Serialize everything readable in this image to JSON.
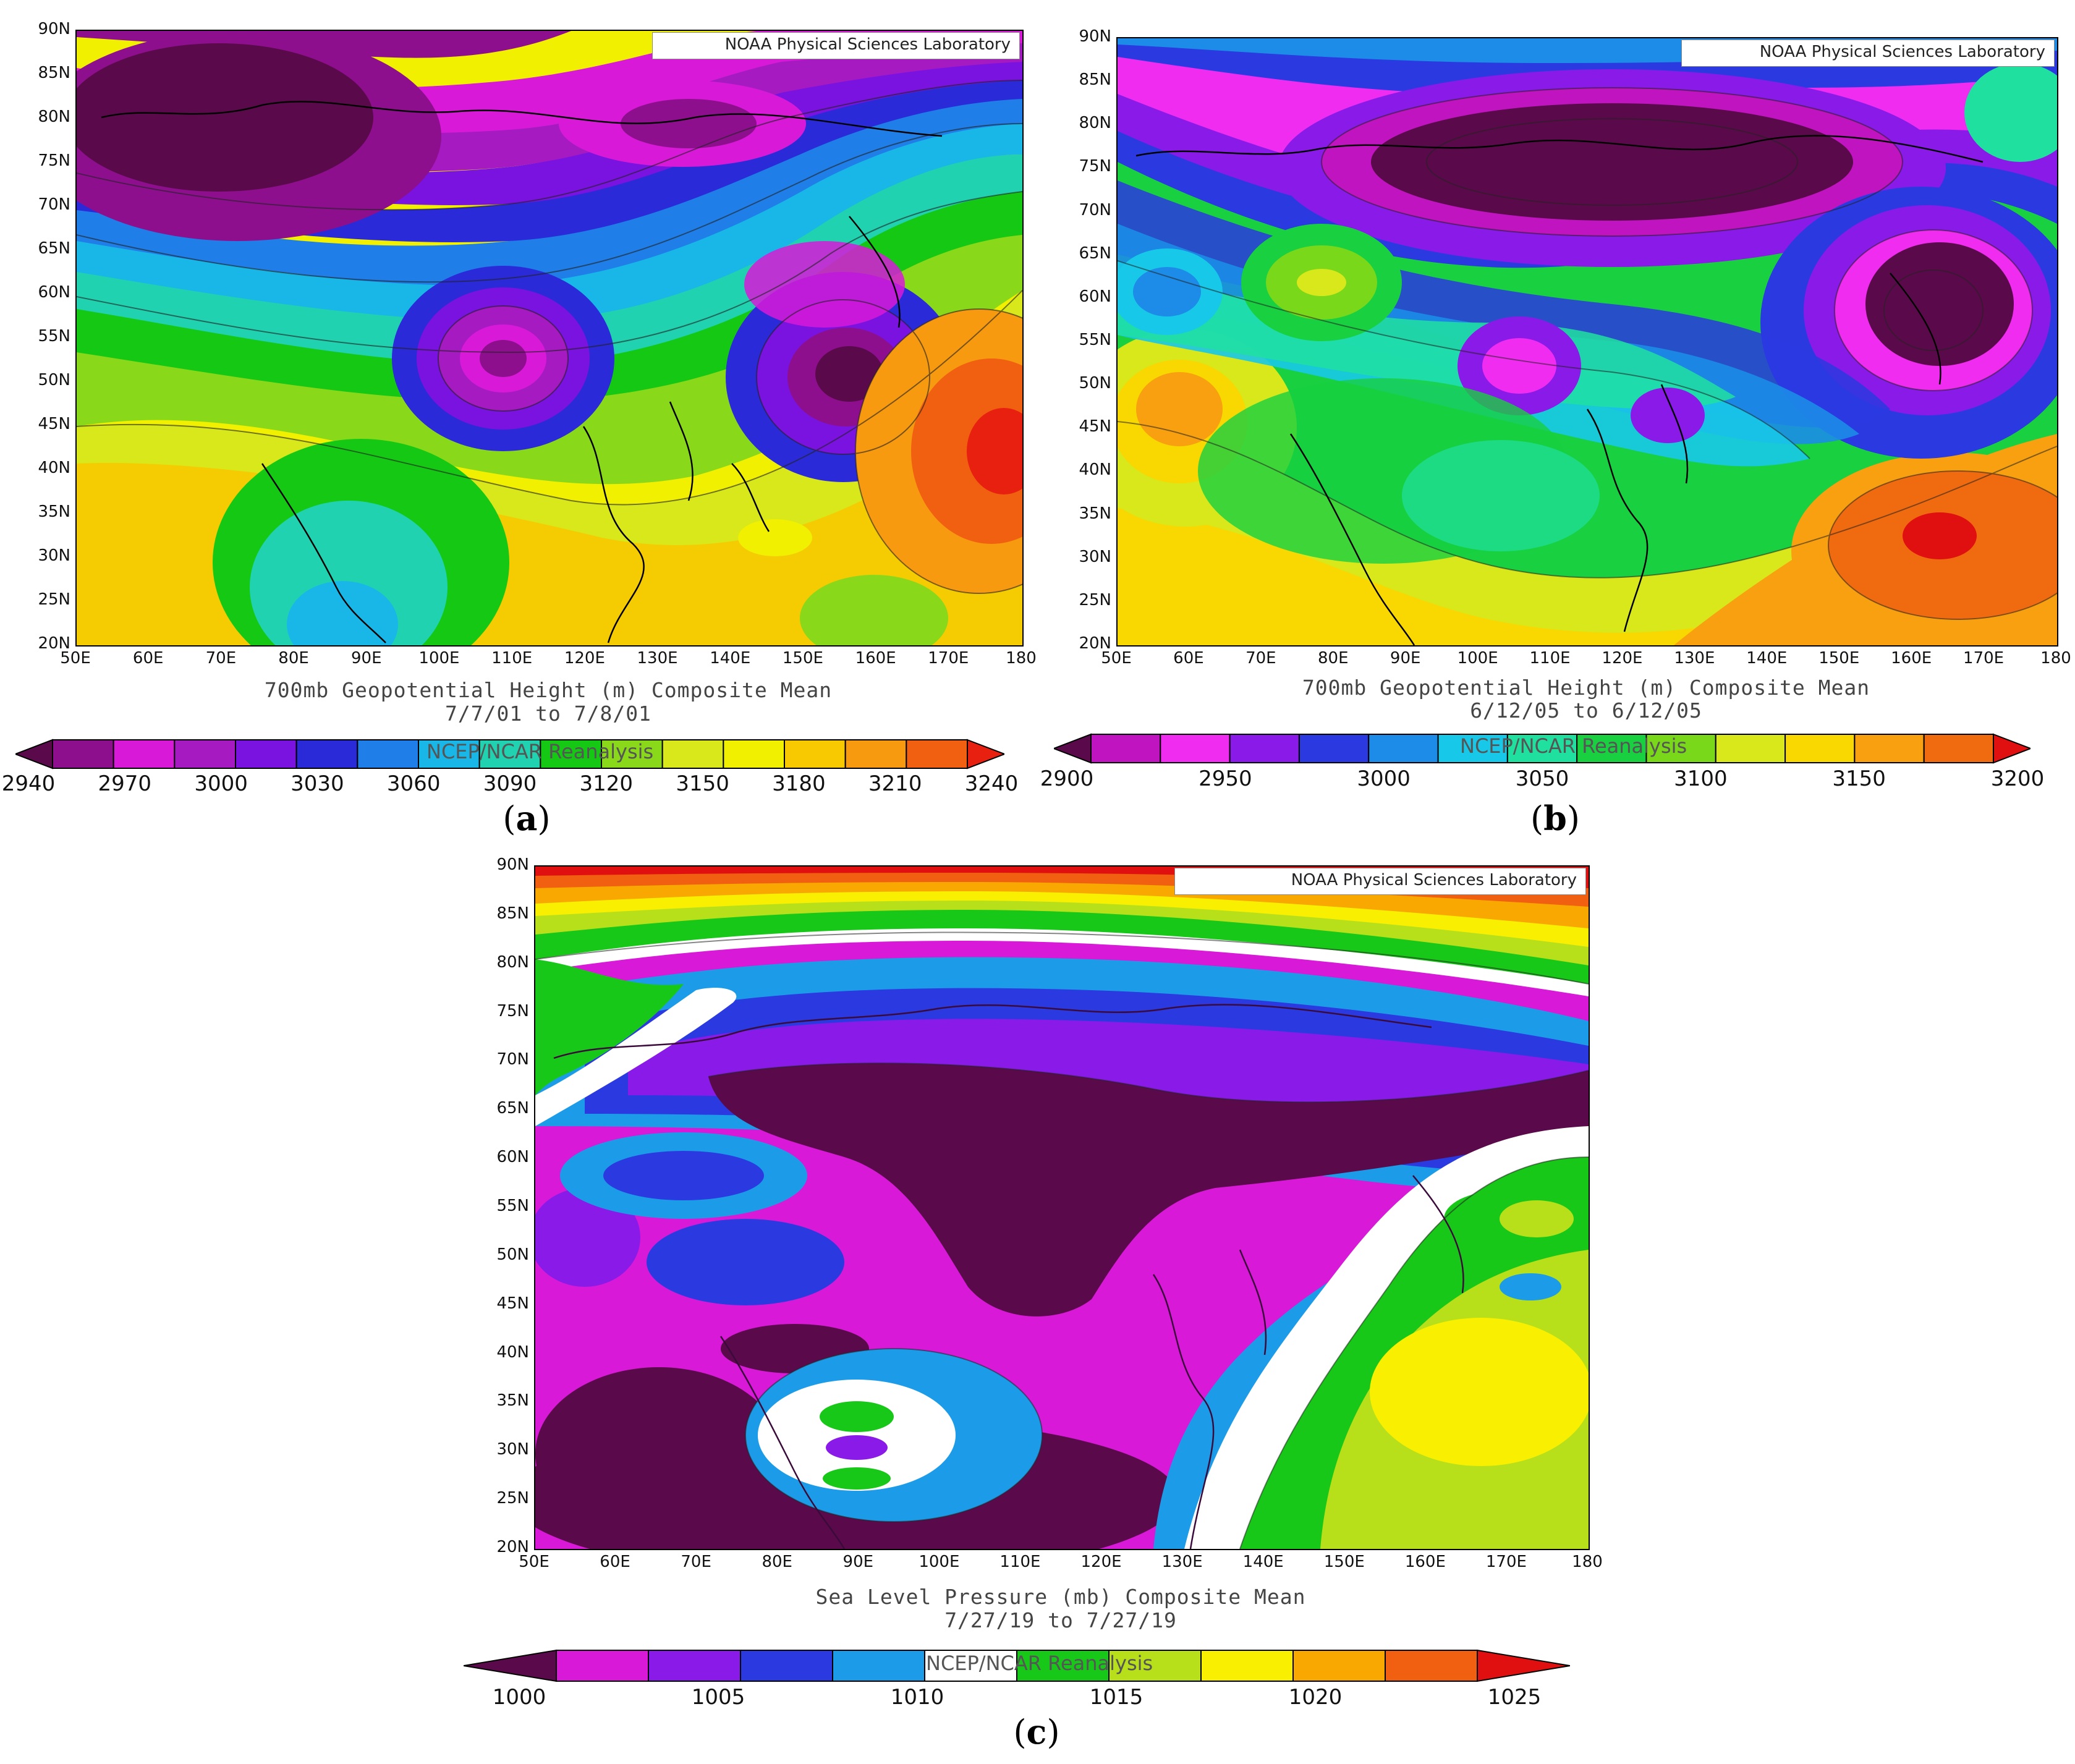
{
  "panels": [
    {
      "id": "a",
      "label_open": "(",
      "label_letter": "a",
      "label_close": ")",
      "credit": "NOAA Physical Sciences Laboratory",
      "caption_line1": "700mb Geopotential Height (m) Composite Mean",
      "caption_line2": "7/7/01  to 7/8/01",
      "colorbar_source": "NCEP/NCAR Reanalysis",
      "colorbar_labels": [
        "2940",
        "2970",
        "3000",
        "3030",
        "3060",
        "3090",
        "3120",
        "3150",
        "3180",
        "3210",
        "3240"
      ],
      "colors": [
        "#5a0a4a",
        "#8e0f8e",
        "#d81ad8",
        "#a61ac2",
        "#7a12e0",
        "#2a2ad8",
        "#1f7ee8",
        "#18b7e8",
        "#20d2b0",
        "#14c814",
        "#8ad81a",
        "#d8e81a",
        "#f0f000",
        "#f8c800",
        "#f89a10",
        "#f06010",
        "#e82010"
      ],
      "x_ticks": [
        "50E",
        "60E",
        "70E",
        "80E",
        "90E",
        "100E",
        "110E",
        "120E",
        "130E",
        "140E",
        "150E",
        "160E",
        "170E",
        "180"
      ],
      "y_ticks": [
        "90N",
        "85N",
        "80N",
        "75N",
        "70N",
        "65N",
        "60N",
        "55N",
        "50N",
        "45N",
        "40N",
        "35N",
        "30N",
        "25N",
        "20N"
      ]
    },
    {
      "id": "b",
      "label_open": "(",
      "label_letter": "b",
      "label_close": ")",
      "credit": "NOAA Physical Sciences Laboratory",
      "caption_line1": "700mb Geopotential Height (m) Composite Mean",
      "caption_line2": "6/12/05  to 6/12/05",
      "colorbar_source": "NCEP/NCAR Reanalysis",
      "colorbar_labels": [
        "2900",
        "2950",
        "3000",
        "3050",
        "3100",
        "3150",
        "3200"
      ],
      "colors": [
        "#5a0a4a",
        "#c014c0",
        "#f02cf0",
        "#8a1ae8",
        "#2a3ae0",
        "#1c8ce8",
        "#18c8e8",
        "#20e0a0",
        "#18d040",
        "#7ad81a",
        "#d8e81a",
        "#f8d800",
        "#f8a010",
        "#f06a10",
        "#e01010"
      ],
      "x_ticks": [
        "50E",
        "60E",
        "70E",
        "80E",
        "90E",
        "100E",
        "110E",
        "120E",
        "130E",
        "140E",
        "150E",
        "160E",
        "170E",
        "180"
      ],
      "y_ticks": [
        "90N",
        "85N",
        "80N",
        "75N",
        "70N",
        "65N",
        "60N",
        "55N",
        "50N",
        "45N",
        "40N",
        "35N",
        "30N",
        "25N",
        "20N"
      ]
    },
    {
      "id": "c",
      "label_open": "(",
      "label_letter": "c",
      "label_close": ")",
      "credit": "NOAA Physical Sciences Laboratory",
      "caption_line1": "Sea Level Pressure (mb) Composite Mean",
      "caption_line2": "7/27/19  to 7/27/19",
      "colorbar_source": "NCEP/NCAR Reanalysis",
      "colorbar_labels": [
        "1000",
        "1005",
        "1010",
        "1015",
        "1020",
        "1025"
      ],
      "colors": [
        "#5a0a4a",
        "#d81ad8",
        "#8a1ae8",
        "#2a3ae0",
        "#1c9ce8",
        "#ffffff",
        "#18c818",
        "#b8e01a",
        "#f8f000",
        "#f8a800",
        "#f06010",
        "#e01010"
      ],
      "x_ticks": [
        "50E",
        "60E",
        "70E",
        "80E",
        "90E",
        "100E",
        "110E",
        "120E",
        "130E",
        "140E",
        "150E",
        "160E",
        "170E",
        "180"
      ],
      "y_ticks": [
        "90N",
        "85N",
        "80N",
        "75N",
        "70N",
        "65N",
        "60N",
        "55N",
        "50N",
        "45N",
        "40N",
        "35N",
        "30N",
        "25N",
        "20N"
      ]
    }
  ]
}
